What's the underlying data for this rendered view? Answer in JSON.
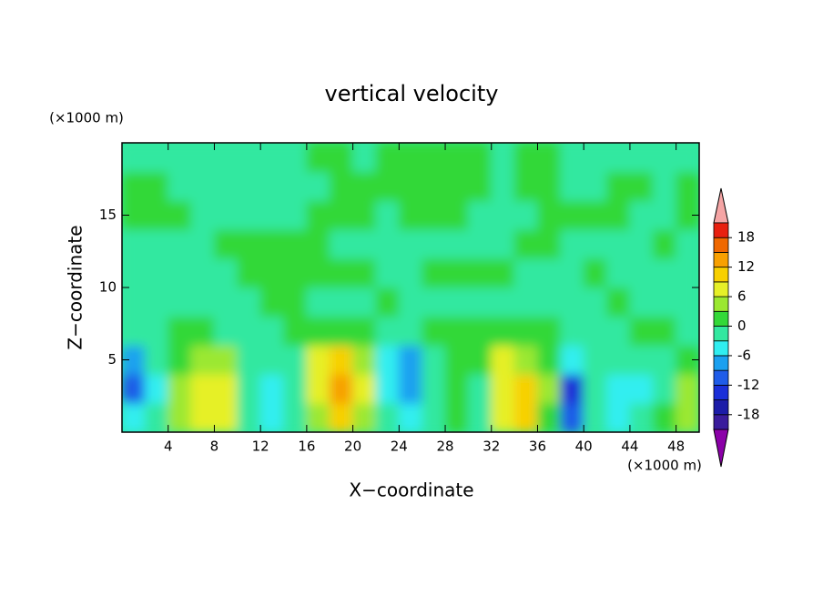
{
  "chart_data": {
    "type": "contour",
    "title": "vertical velocity",
    "x_label": "X−coordinate",
    "y_label": "Z−coordinate",
    "x_units": "(×1000 m)",
    "y_units": "(×1000 m)",
    "x": [
      1,
      3,
      5,
      7,
      9,
      11,
      13,
      15,
      17,
      19,
      21,
      23,
      25,
      27,
      29,
      31,
      33,
      35,
      37,
      39,
      41,
      43,
      45,
      47,
      49
    ],
    "z": [
      1,
      3,
      5,
      7,
      9,
      11,
      13,
      15,
      17,
      19
    ],
    "values": [
      [
        -6,
        -3,
        4,
        8,
        6,
        -1,
        -4,
        -3,
        4,
        9,
        5,
        -2,
        -4,
        -1,
        1,
        -2,
        7,
        9,
        2,
        -10,
        -2,
        -4,
        -3,
        1,
        5
      ],
      [
        -10,
        -4,
        3,
        8,
        7,
        -2,
        -4,
        -3,
        7,
        13,
        7,
        -4,
        -8,
        -2,
        1,
        -1,
        8,
        10,
        3,
        -13,
        -2,
        -4,
        -4,
        -1,
        3
      ],
      [
        -8,
        -3,
        1,
        5,
        3,
        -3,
        -3,
        -2,
        6,
        9,
        3,
        -5,
        -9,
        -3,
        1,
        1,
        6,
        5,
        1,
        -4,
        -1,
        -3,
        -3,
        -1,
        1
      ],
      [
        -2,
        -1,
        1,
        1,
        -1,
        -2,
        -2,
        1,
        2,
        2,
        1,
        -2,
        -2,
        1,
        2,
        1,
        1,
        1,
        0.5,
        -1,
        -1,
        -2,
        1,
        1,
        -1
      ],
      [
        -1,
        -1,
        -1,
        -1,
        -1,
        -1,
        1,
        1,
        -1,
        -1,
        -1,
        1,
        -1,
        -1,
        -1,
        -1,
        -1,
        -1,
        -1,
        -1,
        -1,
        1,
        -1,
        -1,
        -1
      ],
      [
        -1,
        -1,
        -1,
        -1,
        -1,
        1,
        1,
        1,
        1,
        1,
        1,
        -1,
        -1,
        1,
        1,
        1,
        1,
        -1,
        -1,
        -1,
        1,
        -1,
        -1,
        -1,
        -1
      ],
      [
        -1,
        -1,
        -1,
        -1,
        1,
        1,
        1,
        1,
        1,
        -1,
        -1,
        -1,
        -1,
        -1,
        -1,
        -1,
        -1,
        1,
        1,
        -1,
        -1,
        -1,
        -1,
        1,
        -1
      ],
      [
        1,
        1,
        1,
        -1,
        -1,
        -1,
        -1,
        -1,
        1,
        1,
        1,
        -1,
        1,
        1,
        1,
        -1,
        -1,
        -1,
        1,
        1,
        1,
        1,
        -1,
        -1,
        1
      ],
      [
        1,
        1,
        -1,
        -1,
        -1,
        -1,
        -1,
        -1,
        -1,
        1,
        1,
        1,
        1,
        1,
        1,
        1,
        -1,
        1,
        1,
        -1,
        -1,
        1,
        1,
        -1,
        1
      ],
      [
        -1,
        -1,
        -1,
        -1,
        -1,
        -1,
        -1,
        -1,
        1,
        1,
        -1,
        1,
        1,
        1,
        1,
        1,
        -1,
        1,
        1,
        -1,
        -1,
        -1,
        -1,
        -1,
        -1
      ]
    ],
    "xlim": [
      0,
      50
    ],
    "ylim": [
      0,
      20
    ],
    "xticks": [
      4,
      8,
      12,
      16,
      20,
      24,
      28,
      32,
      36,
      40,
      44,
      48
    ],
    "yticks": [
      5,
      10,
      15
    ],
    "levels": [
      -21,
      -18,
      -15,
      -12,
      -9,
      -6,
      -3,
      0,
      3,
      6,
      9,
      12,
      15,
      18,
      21
    ],
    "colors": [
      "#8b00a8",
      "#3a1c9c",
      "#1c1ca8",
      "#1a2fd8",
      "#1f5ce8",
      "#1aa0f0",
      "#30eef0",
      "#33e8a0",
      "#33d838",
      "#9be830",
      "#e6f028",
      "#f8d000",
      "#f8a000",
      "#f06800",
      "#e82010",
      "#f5a5a5"
    ],
    "colorbar_ticks": [
      -18,
      -12,
      -6,
      0,
      6,
      12,
      18
    ]
  }
}
